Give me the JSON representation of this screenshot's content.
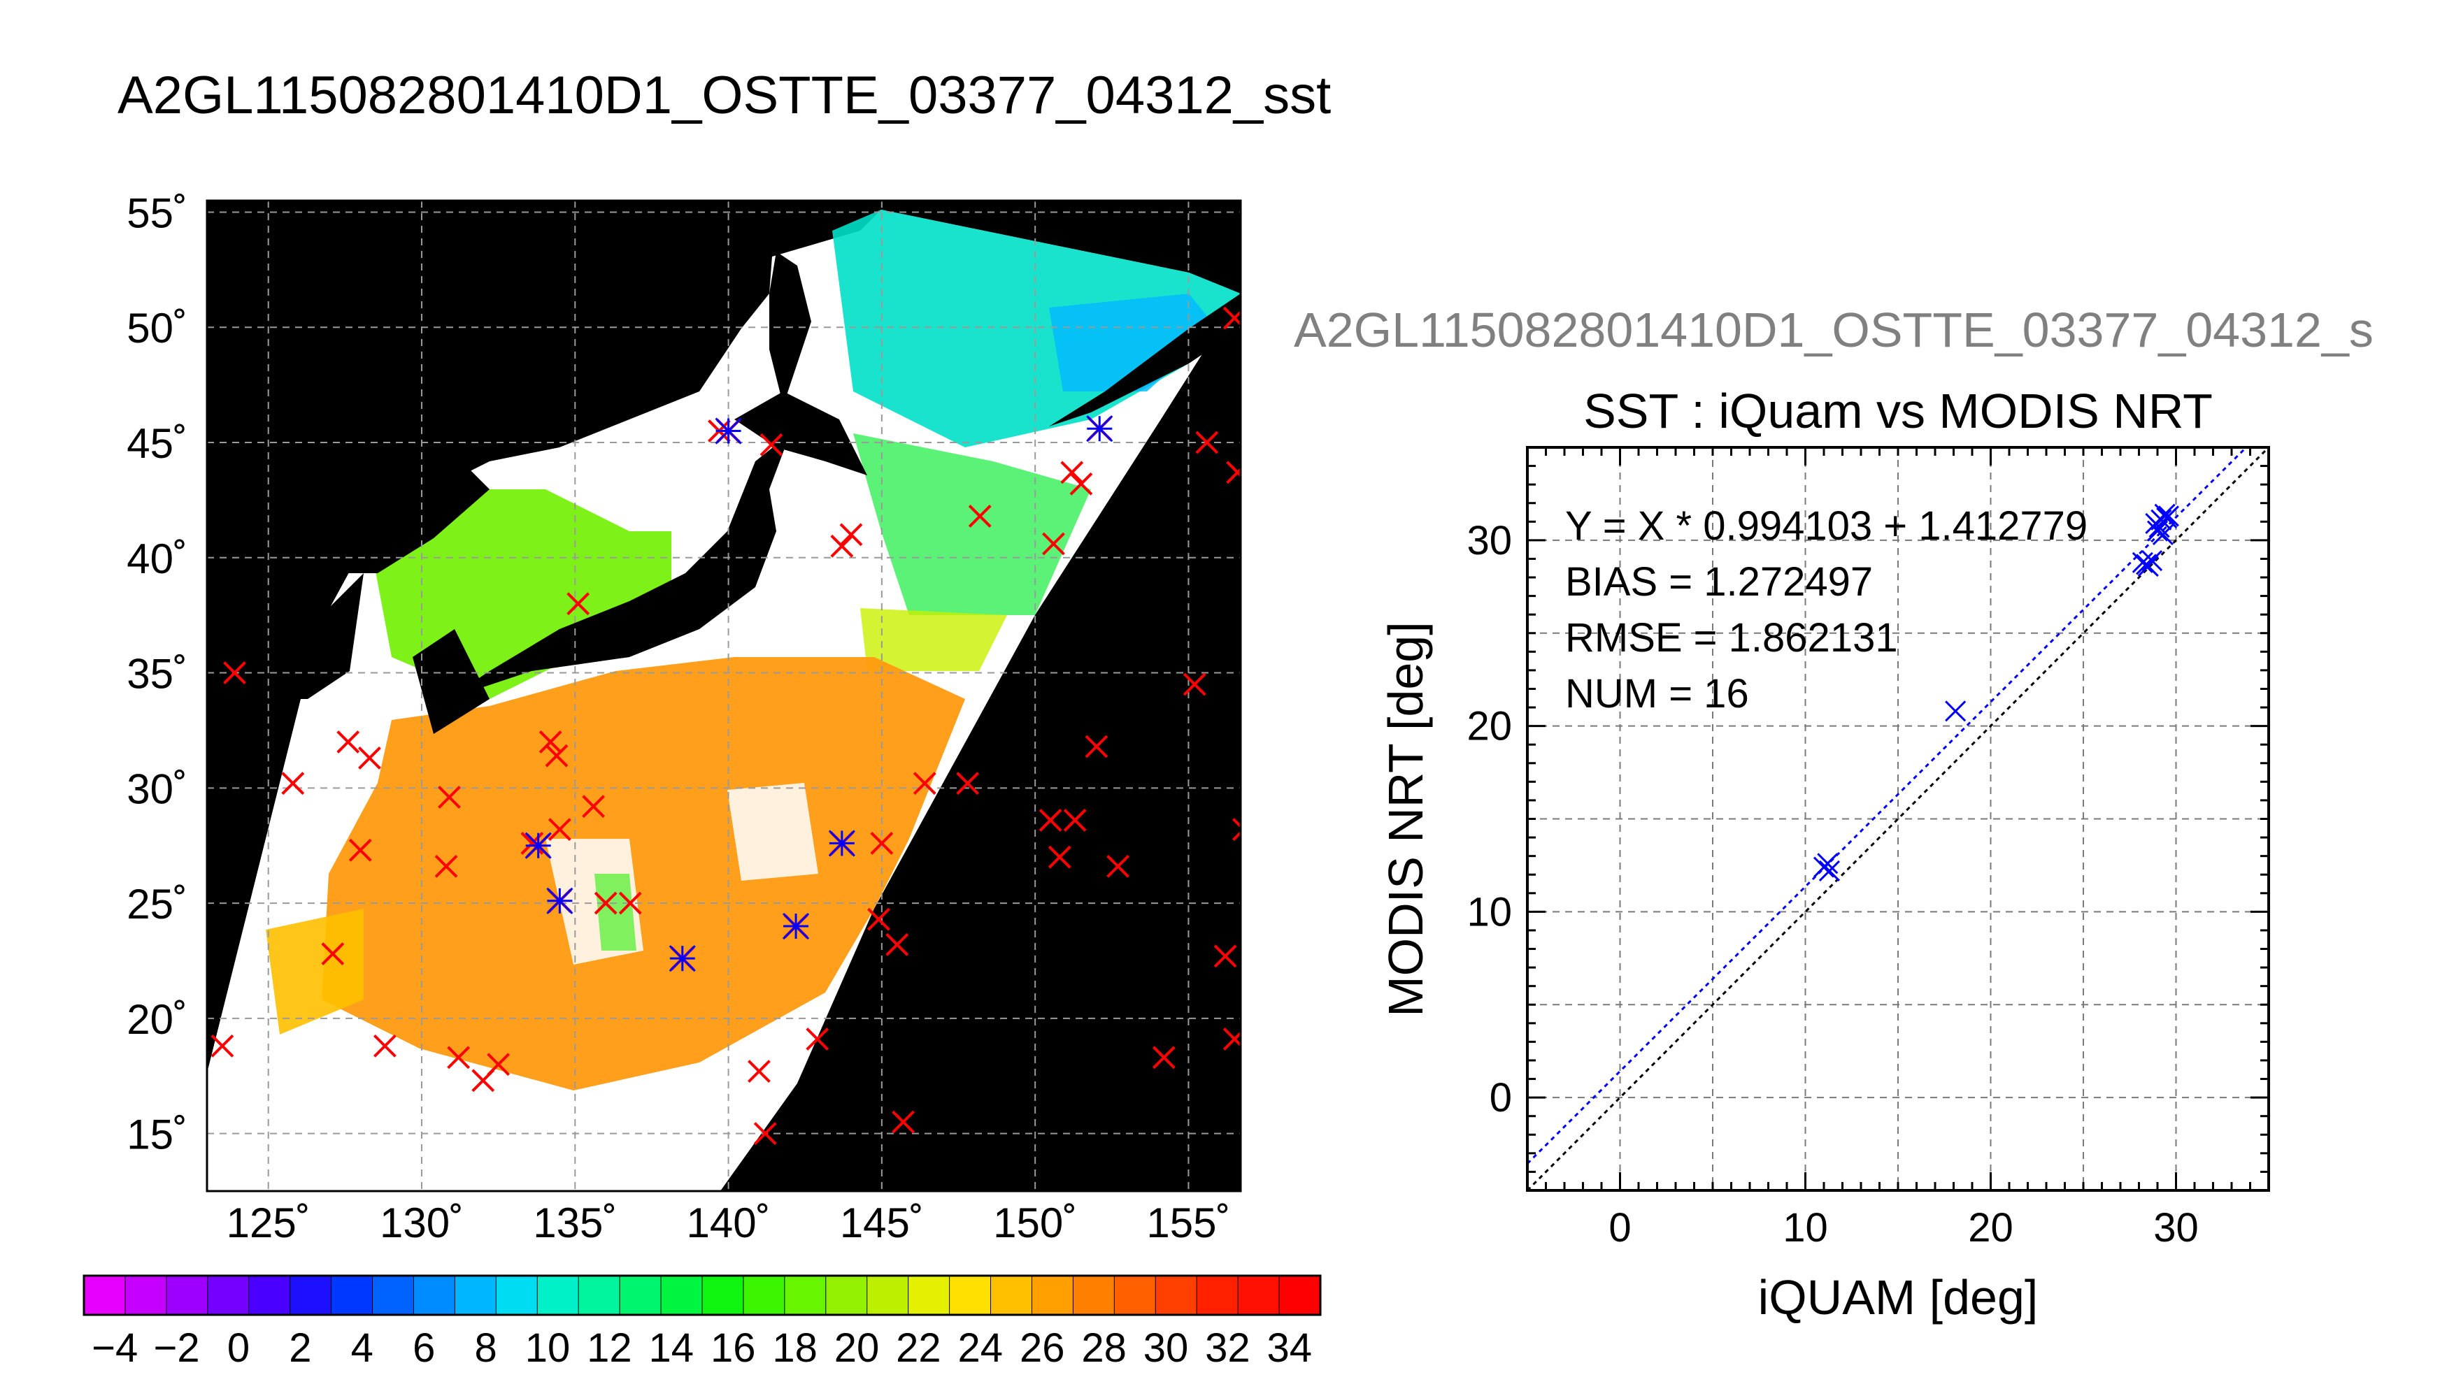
{
  "page_title": "A2GL115082801410D1_OSTTE_03377_04312_sst",
  "colors": {
    "land": "#000000",
    "cloud": "#ffffff",
    "grid": "#9a9a9a",
    "match_red": "#ff0000",
    "match_blue": "#0000ff",
    "fit_line": "#0000ff",
    "one_to_one": "#000000",
    "clipped_title": "#808080"
  },
  "map": {
    "lat_ticks": [
      "55˚",
      "50˚",
      "45˚",
      "40˚",
      "35˚",
      "30˚",
      "25˚",
      "20˚",
      "15˚"
    ],
    "lon_ticks": [
      "125˚",
      "130˚",
      "135˚",
      "140˚",
      "145˚",
      "150˚",
      "155˚"
    ],
    "lat_values": [
      55,
      50,
      45,
      40,
      35,
      30,
      25,
      20,
      15
    ],
    "lon_values": [
      125,
      130,
      135,
      140,
      145,
      150,
      155
    ],
    "lon_range": [
      123,
      156.7
    ],
    "lat_range": [
      12.5,
      55.5
    ],
    "colorbar": {
      "range": [
        -5,
        35
      ],
      "tick_labels": [
        "−4",
        "−2",
        "0",
        "2",
        "4",
        "6",
        "8",
        "10",
        "12",
        "14",
        "16",
        "18",
        "20",
        "22",
        "24",
        "26",
        "28",
        "30",
        "32",
        "34"
      ],
      "tick_values": [
        -4,
        -2,
        0,
        2,
        4,
        6,
        8,
        10,
        12,
        14,
        16,
        18,
        20,
        22,
        24,
        26,
        28,
        30,
        32,
        34
      ],
      "colors": [
        "#e800ff",
        "#c600ff",
        "#9e00ff",
        "#7400ff",
        "#4a00ff",
        "#1c10ff",
        "#0038ff",
        "#0062ff",
        "#008cff",
        "#00b6ff",
        "#00dcf2",
        "#00f0c8",
        "#00f59c",
        "#00f56e",
        "#00f540",
        "#10f510",
        "#3cf500",
        "#68f500",
        "#92f000",
        "#bcf000",
        "#e4f000",
        "#ffe000",
        "#ffc000",
        "#ffa000",
        "#ff8000",
        "#ff6000",
        "#ff4000",
        "#ff2000",
        "#ff1000",
        "#ff0000"
      ]
    },
    "red_matchups": [
      [
        123.9,
        35
      ],
      [
        123.5,
        18.8
      ],
      [
        125.8,
        30.2
      ],
      [
        127.6,
        32
      ],
      [
        128.3,
        31.3
      ],
      [
        128,
        27.3
      ],
      [
        127.1,
        22.8
      ],
      [
        128.8,
        18.8
      ],
      [
        130.9,
        29.6
      ],
      [
        130.8,
        26.6
      ],
      [
        131.2,
        18.3
      ],
      [
        132,
        17.3
      ],
      [
        132.5,
        18
      ],
      [
        133.6,
        27.6
      ],
      [
        134.2,
        32
      ],
      [
        134.4,
        31.4
      ],
      [
        134.5,
        28.2
      ],
      [
        135.6,
        29.2
      ],
      [
        136,
        25
      ],
      [
        136.8,
        25
      ],
      [
        135.1,
        38
      ],
      [
        139.7,
        45.5
      ],
      [
        141.4,
        44.9
      ],
      [
        143.7,
        40.5
      ],
      [
        144,
        41
      ],
      [
        148.2,
        41.8
      ],
      [
        150.6,
        40.6
      ],
      [
        151.2,
        43.7
      ],
      [
        151.5,
        43.2
      ],
      [
        155.6,
        45
      ],
      [
        156.6,
        43.7
      ],
      [
        156.5,
        50.4
      ],
      [
        146.4,
        30.2
      ],
      [
        147.8,
        30.2
      ],
      [
        150.5,
        28.6
      ],
      [
        151.3,
        28.6
      ],
      [
        150.8,
        27
      ],
      [
        152.7,
        26.6
      ],
      [
        152,
        31.8
      ],
      [
        145,
        27.6
      ],
      [
        145.5,
        23.2
      ],
      [
        144.9,
        24.3
      ],
      [
        155.2,
        34.5
      ],
      [
        156.8,
        28.2
      ],
      [
        156.2,
        22.7
      ],
      [
        156.5,
        19.1
      ],
      [
        154.2,
        18.3
      ],
      [
        145.7,
        15.5
      ],
      [
        141,
        17.7
      ],
      [
        141.2,
        15
      ],
      [
        142.9,
        19.1
      ]
    ],
    "blue_matchups": [
      [
        140,
        45.5
      ],
      [
        152.1,
        45.6
      ],
      [
        133.8,
        27.5
      ],
      [
        134.5,
        25.1
      ],
      [
        138.5,
        22.6
      ],
      [
        142.2,
        24
      ],
      [
        143.7,
        27.6
      ]
    ]
  },
  "clipped_right_title": "A2GL115082801410D1_OSTTE_03377_04312_s",
  "chart_data": {
    "type": "scatter",
    "title": "SST : iQuam vs MODIS NRT",
    "xlabel": "iQUAM [deg]",
    "ylabel": "MODIS NRT [deg]",
    "xlim": [
      -5,
      35
    ],
    "ylim": [
      -5,
      35
    ],
    "x_ticks": [
      0,
      10,
      20,
      30
    ],
    "y_ticks": [
      0,
      10,
      20,
      30
    ],
    "grid": true,
    "annotations": [
      "Y = X * 0.994103 + 1.412779",
      "BIAS = 1.272497",
      "RMSE = 1.862131",
      "NUM = 16"
    ],
    "fit": {
      "slope": 0.994103,
      "intercept": 1.412779
    },
    "points": [
      {
        "x": 11.0,
        "y": 12.4
      },
      {
        "x": 11.2,
        "y": 12.6
      },
      {
        "x": 11.3,
        "y": 12.2
      },
      {
        "x": 18.1,
        "y": 20.8
      },
      {
        "x": 28.2,
        "y": 28.8
      },
      {
        "x": 28.5,
        "y": 28.6
      },
      {
        "x": 28.7,
        "y": 28.9
      },
      {
        "x": 29.0,
        "y": 30.5
      },
      {
        "x": 29.2,
        "y": 31.1
      },
      {
        "x": 29.4,
        "y": 31.4
      },
      {
        "x": 29.5,
        "y": 31.2
      },
      {
        "x": 28.9,
        "y": 30.9
      },
      {
        "x": 29.3,
        "y": 30.3
      },
      {
        "x": 28.4,
        "y": 28.7
      },
      {
        "x": 29.6,
        "y": 31.3
      },
      {
        "x": 29.1,
        "y": 30.7
      }
    ]
  }
}
